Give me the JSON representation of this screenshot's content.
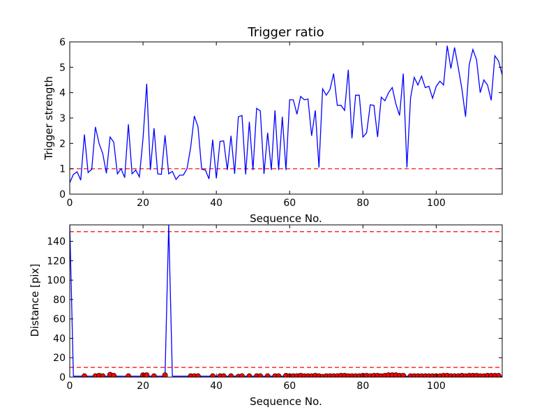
{
  "chart_data": [
    {
      "type": "line",
      "title": "Trigger ratio",
      "xlabel": "Sequence No.",
      "ylabel": "Trigger strength",
      "xlim": [
        0,
        118
      ],
      "ylim": [
        0,
        6
      ],
      "xticks": [
        0,
        20,
        40,
        60,
        80,
        100
      ],
      "yticks": [
        0,
        1,
        2,
        3,
        4,
        5,
        6
      ],
      "grid": false,
      "line_color": "#0000ff",
      "reference_line": {
        "y": 1.0,
        "color": "#ff0000",
        "style": "dashed"
      },
      "series": [
        {
          "values": [
            0.45,
            0.78,
            0.88,
            0.55,
            2.35,
            0.85,
            0.98,
            2.65,
            2.0,
            1.6,
            0.82,
            2.25,
            2.05,
            0.8,
            1.0,
            0.65,
            2.75,
            0.8,
            0.95,
            0.68,
            2.2,
            4.35,
            0.95,
            2.6,
            0.8,
            0.78,
            2.32,
            0.8,
            0.9,
            0.58,
            0.75,
            0.75,
            1.0,
            1.85,
            3.08,
            2.65,
            0.98,
            0.95,
            0.6,
            2.15,
            0.62,
            2.08,
            2.1,
            0.95,
            2.3,
            0.8,
            3.05,
            3.1,
            0.78,
            2.85,
            0.95,
            3.38,
            3.28,
            0.8,
            2.42,
            0.95,
            3.3,
            0.95,
            3.05,
            0.95,
            3.72,
            3.72,
            3.15,
            3.85,
            3.72,
            3.75,
            2.3,
            3.3,
            1.05,
            4.15,
            3.9,
            4.12,
            4.75,
            3.5,
            3.5,
            3.3,
            4.9,
            2.2,
            3.9,
            3.9,
            2.25,
            2.42,
            3.52,
            3.5,
            2.25,
            3.82,
            3.68,
            4.0,
            4.2,
            3.55,
            3.1,
            4.75,
            1.05,
            3.8,
            4.6,
            4.3,
            4.65,
            4.2,
            4.25,
            3.78,
            4.25,
            4.45,
            4.3,
            5.85,
            4.95,
            5.78,
            5.0,
            4.15,
            3.05,
            5.1,
            5.7,
            5.3,
            4.0,
            4.5,
            4.3,
            3.7,
            5.45,
            5.25,
            4.7
          ]
        }
      ]
    },
    {
      "type": "line",
      "title": "",
      "xlabel": "Sequence No.",
      "ylabel": "Distance [pix]",
      "xlim": [
        0,
        118
      ],
      "ylim": [
        0,
        157
      ],
      "xticks": [
        0,
        20,
        40,
        60,
        80,
        100
      ],
      "yticks": [
        0,
        20,
        40,
        60,
        80,
        100,
        120,
        140
      ],
      "grid": false,
      "line_color": "#0000ff",
      "marker_color": "#ff0000",
      "reference_lines": [
        {
          "y": 150,
          "color": "#ff0000",
          "style": "dashed"
        },
        {
          "y": 10,
          "color": "#ff0000",
          "style": "dashed"
        }
      ],
      "series": [
        {
          "line_values": [
            157,
            1,
            1,
            1,
            1,
            1,
            1,
            1,
            1,
            1,
            1,
            1,
            1,
            1,
            1,
            1,
            1,
            1,
            1,
            1,
            1,
            1,
            1,
            1,
            1,
            1,
            1,
            157,
            1,
            1,
            1,
            1,
            1,
            1,
            1,
            1,
            1,
            1,
            1,
            1,
            1,
            1,
            1,
            1,
            1,
            1,
            1,
            1,
            1,
            1,
            1,
            1,
            1,
            1,
            1,
            1,
            1,
            1,
            1,
            1,
            1,
            1,
            1,
            1,
            1,
            1,
            1,
            1,
            1,
            1,
            1,
            1,
            1,
            1,
            1,
            1,
            1,
            1,
            1,
            1,
            1,
            1,
            1,
            1,
            1,
            1,
            1,
            1,
            1,
            1,
            1,
            1,
            1,
            1,
            1,
            1,
            1,
            1,
            1,
            1,
            1,
            1,
            1,
            1,
            1,
            1,
            1,
            1,
            1,
            1,
            1,
            1,
            1,
            1,
            1,
            1,
            1,
            1,
            1
          ],
          "marker_x": [
            4,
            7,
            8,
            9,
            11,
            12,
            16,
            20,
            21,
            23,
            26,
            33,
            34,
            35,
            39,
            41,
            42,
            44,
            46,
            47,
            49,
            51,
            52,
            54,
            56,
            57,
            59,
            60,
            61,
            62,
            63,
            64,
            65,
            66,
            67,
            68,
            69,
            70,
            71,
            72,
            73,
            74,
            75,
            76,
            77,
            78,
            79,
            80,
            81,
            82,
            83,
            84,
            85,
            86,
            87,
            88,
            89,
            90,
            91,
            93,
            94,
            95,
            96,
            97,
            98,
            99,
            100,
            101,
            102,
            103,
            104,
            105,
            106,
            107,
            108,
            109,
            110,
            111,
            112,
            113,
            114,
            115,
            116,
            117
          ],
          "marker_y": [
            1,
            1,
            1.5,
            1,
            2.5,
            1.5,
            1,
            2,
            2,
            1,
            2,
            1,
            1,
            1,
            1,
            1,
            1,
            1,
            0.5,
            1,
            1,
            1,
            1,
            1,
            1,
            1,
            1.5,
            1,
            1,
            1,
            1.5,
            1,
            1,
            1,
            1.5,
            1,
            0.5,
            1,
            1,
            1,
            1,
            1.5,
            1.5,
            1,
            1,
            1,
            1,
            1.5,
            1.5,
            1,
            1.5,
            1.5,
            1,
            1.5,
            2,
            2,
            2,
            1.5,
            1.5,
            1,
            1,
            1,
            1,
            1,
            1,
            1,
            1,
            1,
            1.5,
            1.5,
            1,
            1,
            1,
            1.5,
            1,
            1.5,
            1.5,
            1.5,
            1,
            1,
            1.5,
            1.5,
            1.5,
            1.5
          ]
        }
      ]
    }
  ]
}
